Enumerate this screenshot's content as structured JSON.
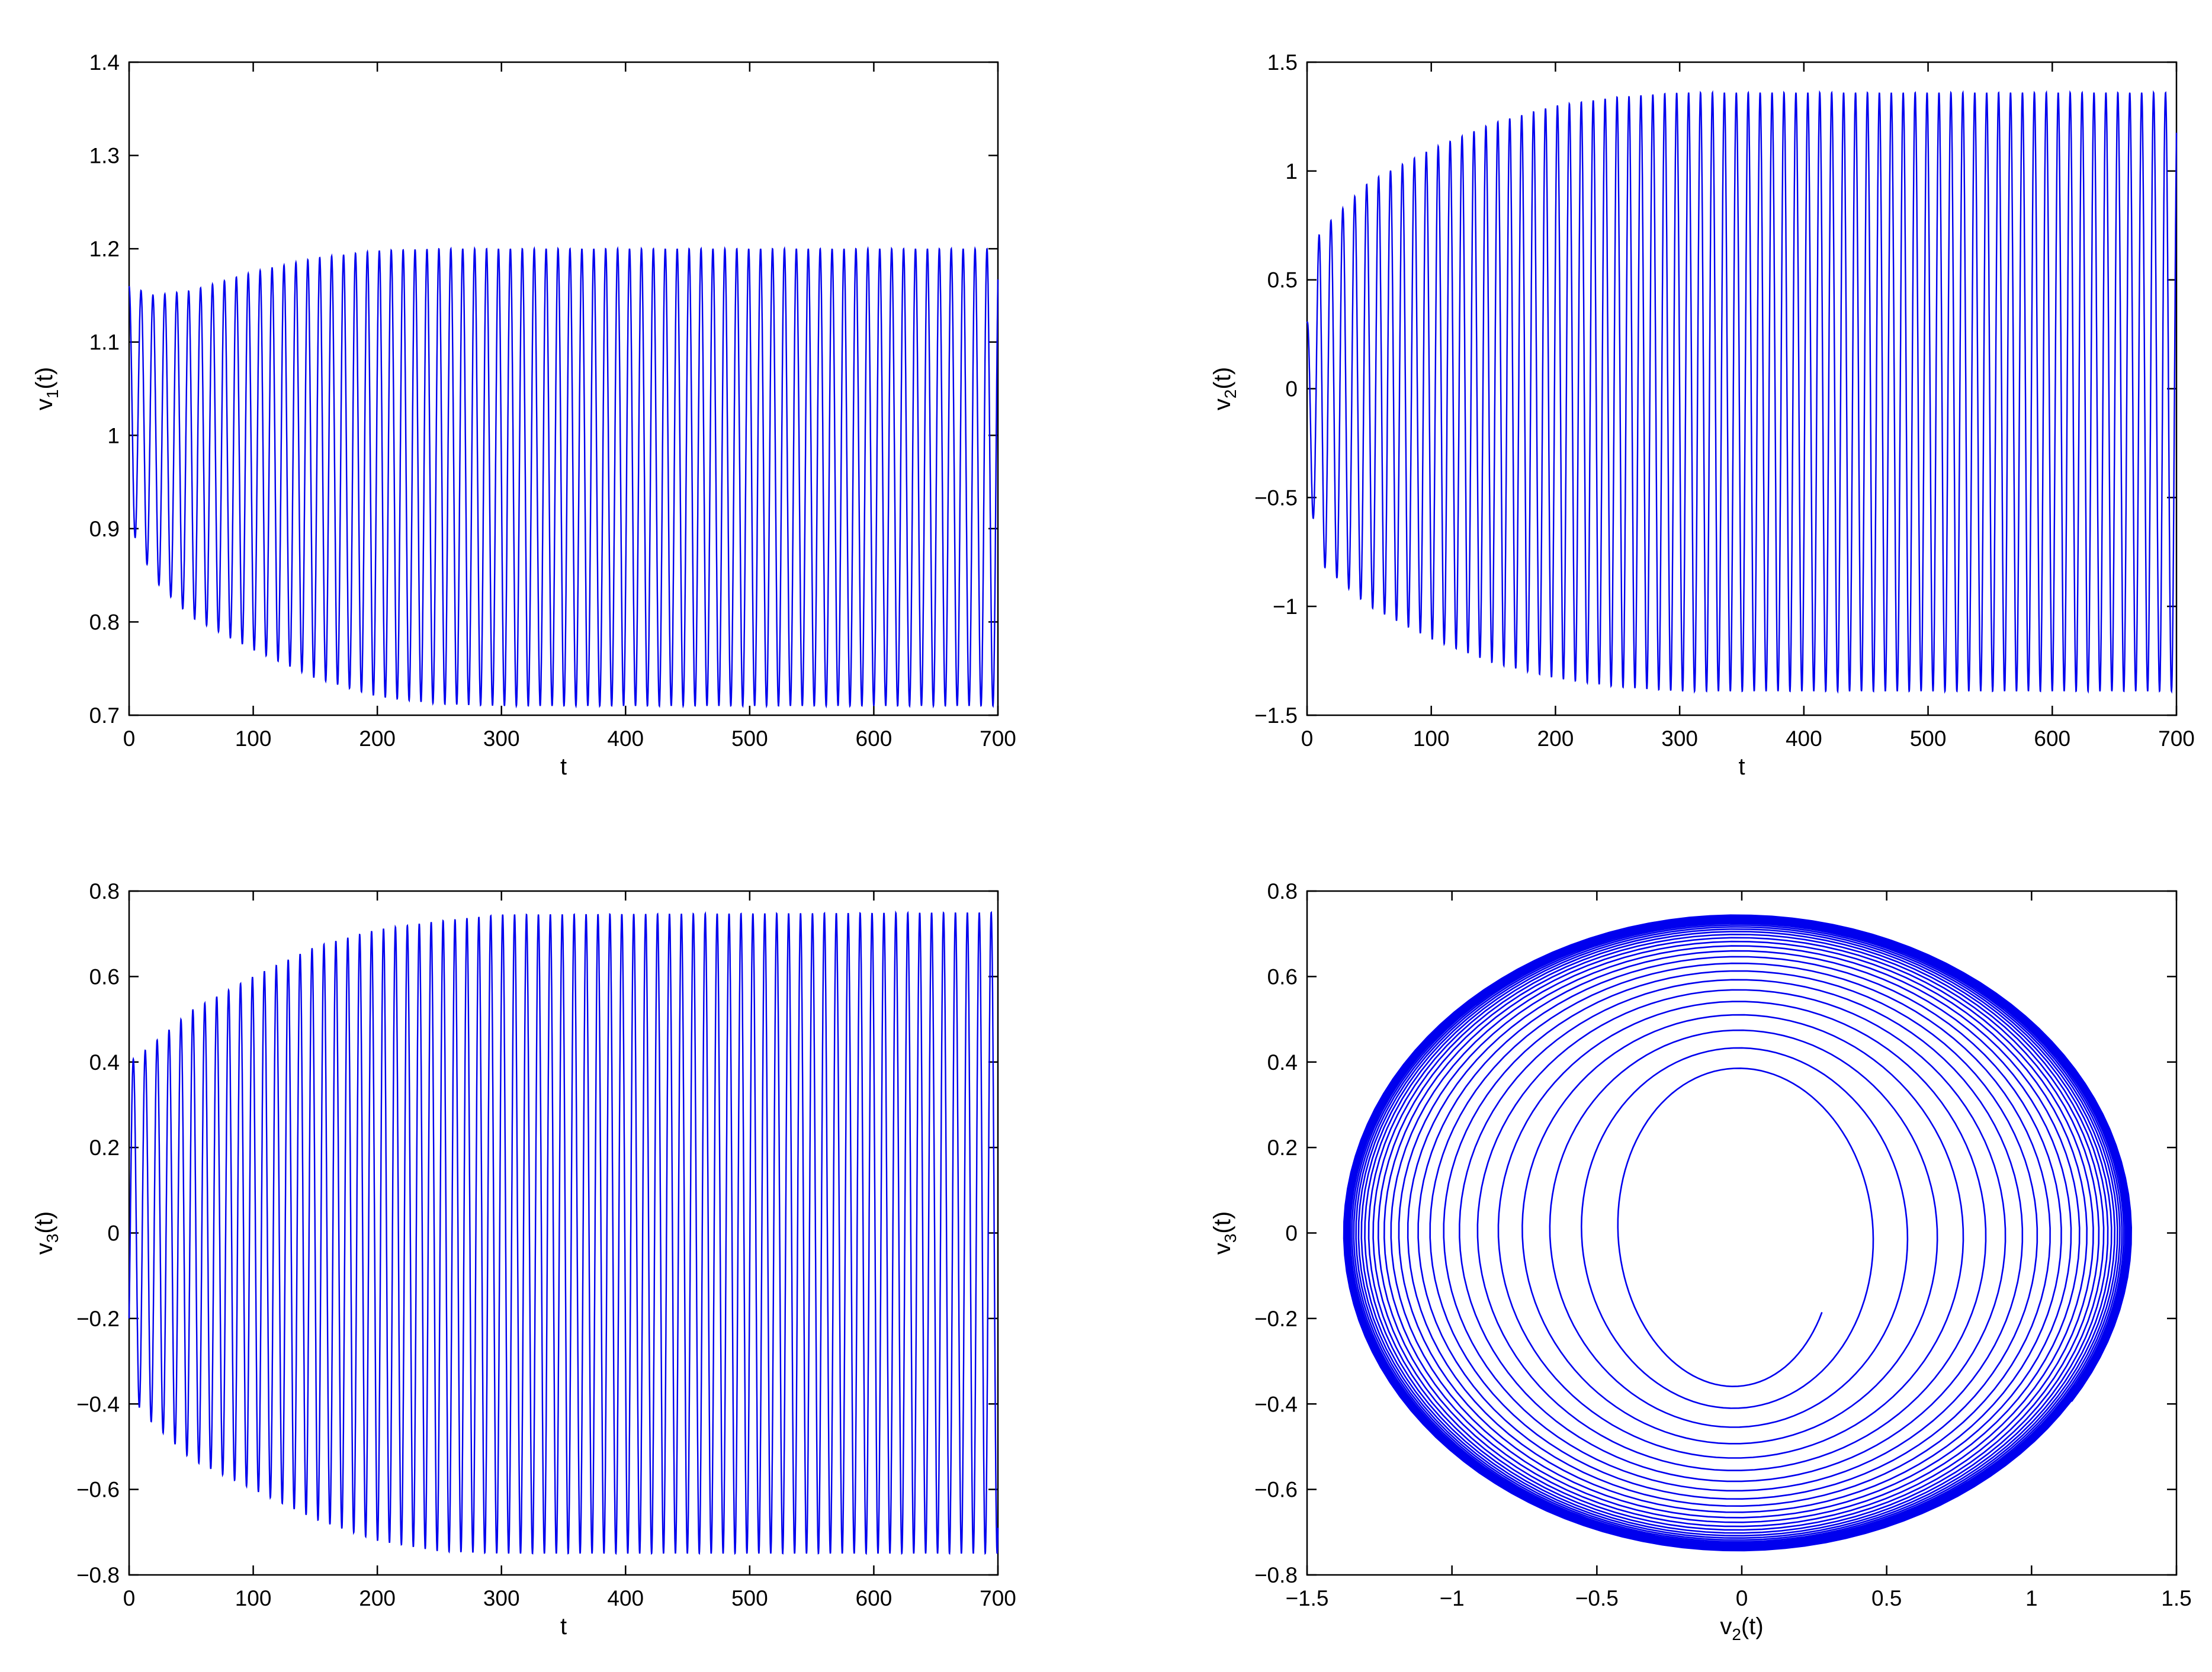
{
  "colors": {
    "line": "#0000ee",
    "axes": "#000000",
    "background": "#ffffff"
  },
  "chart_data": [
    {
      "type": "line",
      "panel": "top-left",
      "xlabel": "t",
      "ylabel": {
        "base": "v",
        "sub": "1",
        "suffix": "(t)"
      },
      "xlim": [
        0,
        700
      ],
      "ylim": [
        0.7,
        1.4
      ],
      "xticks": [
        0,
        100,
        200,
        300,
        400,
        500,
        600,
        700
      ],
      "xtick_labels": [
        "0",
        "100",
        "200",
        "300",
        "400",
        "500",
        "600",
        "700"
      ],
      "yticks": [
        0.7,
        0.8,
        0.9,
        1.0,
        1.1,
        1.2,
        1.3,
        1.4
      ],
      "ytick_labels": [
        "0.7",
        "0.8",
        "0.9",
        "1",
        "1.1",
        "1.2",
        "1.3",
        "1.4"
      ],
      "series": [
        {
          "start": [
            0,
            1.22
          ],
          "period": 9.6,
          "center": 0.955,
          "amplitude_envelope": {
            "t": [
              0,
              20,
              50,
              100,
              150,
              200,
              250,
              300,
              700
            ],
            "max": [
              1.16,
              1.15,
              1.155,
              1.175,
              1.19,
              1.198,
              1.2,
              1.2,
              1.2
            ],
            "min": [
              0.905,
              0.845,
              0.805,
              0.77,
              0.74,
              0.72,
              0.712,
              0.71,
              0.71
            ]
          }
        }
      ]
    },
    {
      "type": "line",
      "panel": "top-right",
      "xlabel": "t",
      "ylabel": {
        "base": "v",
        "sub": "2",
        "suffix": "(t)"
      },
      "xlim": [
        0,
        700
      ],
      "ylim": [
        -1.5,
        1.5
      ],
      "xticks": [
        0,
        100,
        200,
        300,
        400,
        500,
        600,
        700
      ],
      "xtick_labels": [
        "0",
        "100",
        "200",
        "300",
        "400",
        "500",
        "600",
        "700"
      ],
      "yticks": [
        -1.5,
        -1,
        -0.5,
        0,
        0.5,
        1,
        1.5
      ],
      "ytick_labels": [
        "−1.5",
        "−1",
        "−0.5",
        "0",
        "0.5",
        "1",
        "1.5"
      ],
      "series": [
        {
          "start": [
            0,
            0.3
          ],
          "period": 9.6,
          "amplitude_envelope": {
            "t": [
              0,
              10,
              50,
              100,
              150,
              200,
              250,
              300,
              350,
              700
            ],
            "max": [
              0.3,
              0.72,
              0.95,
              1.1,
              1.22,
              1.3,
              1.34,
              1.36,
              1.36,
              1.36
            ],
            "min": [
              -0.4,
              -0.8,
              -1.0,
              -1.15,
              -1.26,
              -1.33,
              -1.37,
              -1.39,
              -1.39,
              -1.39
            ]
          }
        }
      ]
    },
    {
      "type": "line",
      "panel": "bottom-left",
      "xlabel": "t",
      "ylabel": {
        "base": "v",
        "sub": "3",
        "suffix": "(t)"
      },
      "xlim": [
        0,
        700
      ],
      "ylim": [
        -0.8,
        0.8
      ],
      "xticks": [
        0,
        100,
        200,
        300,
        400,
        500,
        600,
        700
      ],
      "xtick_labels": [
        "0",
        "100",
        "200",
        "300",
        "400",
        "500",
        "600",
        "700"
      ],
      "yticks": [
        -0.8,
        -0.6,
        -0.4,
        -0.2,
        0,
        0.2,
        0.4,
        0.6,
        0.8
      ],
      "ytick_labels": [
        "−0.8",
        "−0.6",
        "−0.4",
        "−0.2",
        "0",
        "0.2",
        "0.4",
        "0.6",
        "0.8"
      ],
      "series": [
        {
          "start": [
            0,
            -0.2
          ],
          "period": 9.6,
          "amplitude_envelope": {
            "t": [
              0,
              10,
              50,
              100,
              150,
              200,
              250,
              300,
              700
            ],
            "max": [
              0.4,
              0.42,
              0.52,
              0.6,
              0.67,
              0.71,
              0.73,
              0.745,
              0.75
            ],
            "min": [
              -0.35,
              -0.42,
              -0.53,
              -0.6,
              -0.67,
              -0.72,
              -0.745,
              -0.75,
              -0.75
            ]
          }
        }
      ]
    },
    {
      "type": "line",
      "panel": "bottom-right",
      "xlabel": {
        "base": "v",
        "sub": "2",
        "suffix": "(t)"
      },
      "ylabel": {
        "base": "v",
        "sub": "3",
        "suffix": "(t)"
      },
      "xlim": [
        -1.5,
        1.5
      ],
      "ylim": [
        -0.8,
        0.8
      ],
      "xticks": [
        -1.5,
        -1,
        -0.5,
        0,
        0.5,
        1,
        1.5
      ],
      "xtick_labels": [
        "−1.5",
        "−1",
        "−0.5",
        "0",
        "0.5",
        "1",
        "1.5"
      ],
      "yticks": [
        -0.8,
        -0.6,
        -0.4,
        -0.2,
        0,
        0.2,
        0.4,
        0.6,
        0.8
      ],
      "ytick_labels": [
        "−0.8",
        "−0.6",
        "−0.4",
        "−0.2",
        "0",
        "0.2",
        "0.4",
        "0.6",
        "0.8"
      ],
      "series": [
        {
          "phase_portrait": true,
          "start": [
            0.3,
            -0.2
          ],
          "center": [
            -0.02,
            0.0
          ],
          "limit_cycle": {
            "x_min": -1.39,
            "x_max": 1.36,
            "y_min": -0.75,
            "y_max": 0.75
          },
          "initial_radius": {
            "x": 0.35,
            "y": 0.35
          },
          "turns": 30
        }
      ]
    }
  ]
}
